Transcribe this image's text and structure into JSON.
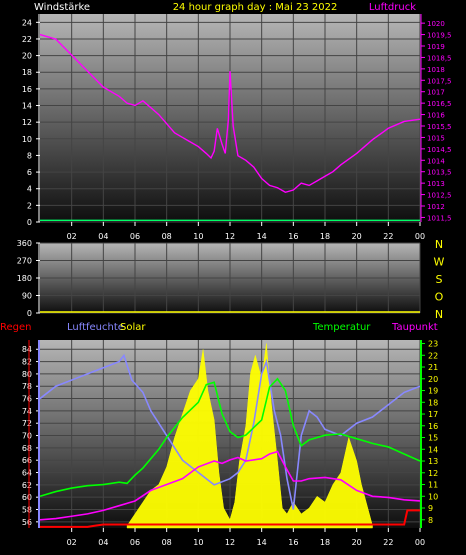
{
  "colors": {
    "background": "#000000",
    "windstaerke": "#ffffff",
    "title": "#ffff00",
    "luftdruck": "#ff00ff",
    "regen": "#ff0000",
    "luftfeuchte": "#8888ff",
    "solar": "#ffff00",
    "temperatur": "#00ff00",
    "taupunkt": "#ff00ff",
    "dir_labels": "#ffff00"
  },
  "chart_data": [
    {
      "type": "line",
      "title": "24 hour graph day : Mai 23 2022",
      "left_axis_label": "Windstärke",
      "right_axis_label": "Luftdruck",
      "x_ticks": [
        "02",
        "04",
        "06",
        "08",
        "10",
        "12",
        "14",
        "16",
        "18",
        "20",
        "22",
        "00"
      ],
      "left_ticks": [
        "0",
        "2",
        "4",
        "6",
        "8",
        "10",
        "12",
        "14",
        "16",
        "18",
        "20",
        "22",
        "24"
      ],
      "right_ticks": [
        "1011,5",
        "1012",
        "1012,5",
        "1013",
        "1013,5",
        "1014",
        "1014,5",
        "1015",
        "1015,5",
        "1016",
        "1016,5",
        "1017",
        "1017,5",
        "1018",
        "1018,5",
        "1019",
        "1019,5",
        "1020"
      ],
      "ylim_left": [
        0,
        25
      ],
      "ylim_right": [
        1011.3,
        1020.4
      ],
      "grid": true,
      "series": [
        {
          "name": "Luftdruck",
          "axis": "right",
          "x": [
            0,
            1,
            2,
            3,
            4,
            5,
            5.5,
            6,
            6.5,
            7,
            7.5,
            8,
            8.5,
            9,
            9.5,
            10,
            10.5,
            10.8,
            11,
            11.2,
            11.5,
            11.7,
            11.9,
            12,
            12.2,
            12.5,
            13,
            13.5,
            14,
            14.5,
            15,
            15.5,
            16,
            16.5,
            17,
            17.5,
            18,
            18.5,
            19,
            20,
            21,
            22,
            23,
            24
          ],
          "values": [
            1019.5,
            1019.3,
            1018.6,
            1017.9,
            1017.2,
            1016.8,
            1016.5,
            1016.4,
            1016.6,
            1016.3,
            1016.0,
            1015.6,
            1015.2,
            1015.0,
            1014.8,
            1014.6,
            1014.3,
            1014.1,
            1014.4,
            1015.4,
            1014.7,
            1014.3,
            1015.8,
            1017.9,
            1015.5,
            1014.2,
            1014.0,
            1013.7,
            1013.2,
            1012.9,
            1012.8,
            1012.6,
            1012.7,
            1013.0,
            1012.9,
            1013.1,
            1013.3,
            1013.5,
            1013.8,
            1014.3,
            1014.9,
            1015.4,
            1015.7,
            1015.8
          ]
        },
        {
          "name": "Windstärke",
          "axis": "left",
          "x": [
            0,
            24
          ],
          "values": [
            0.2,
            0.2
          ]
        }
      ]
    },
    {
      "type": "line",
      "left_ticks": [
        "0",
        "90",
        "180",
        "270",
        "360"
      ],
      "dir_labels": [
        "N",
        "W",
        "S",
        "O",
        "N"
      ],
      "ylim": [
        0,
        360
      ],
      "grid": true,
      "series": [
        {
          "name": "Windrichtung",
          "x": [
            0,
            24
          ],
          "values": [
            0,
            0
          ]
        }
      ]
    },
    {
      "type": "line",
      "legend": [
        "Regen",
        "Luftfeuchte",
        "Solar",
        "Temperatur",
        "Taupunkt"
      ],
      "x_ticks": [
        "02",
        "04",
        "06",
        "08",
        "10",
        "12",
        "14",
        "16",
        "18",
        "20",
        "22",
        "00"
      ],
      "left_ticks": [
        "56",
        "58",
        "60",
        "62",
        "64",
        "66",
        "68",
        "70",
        "72",
        "74",
        "76",
        "78",
        "80",
        "82",
        "84"
      ],
      "right_ticks": [
        "8",
        "9",
        "10",
        "11",
        "12",
        "13",
        "14",
        "15",
        "16",
        "17",
        "18",
        "19",
        "20",
        "21",
        "22",
        "23"
      ],
      "ylim_left": [
        55,
        85.5
      ],
      "ylim_right": [
        7.3,
        23.3
      ],
      "grid": true,
      "series": [
        {
          "name": "Luftfeuchte",
          "axis": "left",
          "x": [
            0,
            1,
            2,
            3,
            4,
            5,
            5.3,
            5.8,
            6.5,
            7,
            7.5,
            8,
            8.5,
            9,
            9.5,
            10,
            11,
            12,
            12.5,
            13,
            13.5,
            14,
            14.3,
            14.8,
            15.2,
            15.6,
            16,
            16.5,
            17,
            17.5,
            18,
            19,
            20,
            21,
            22,
            23,
            24
          ],
          "values": [
            76,
            78,
            79,
            80,
            81,
            82,
            83,
            79,
            77,
            74,
            72,
            70,
            68,
            66,
            65,
            64,
            62,
            63,
            64,
            66,
            72,
            80,
            82,
            74,
            70,
            63,
            58,
            70,
            74,
            73,
            71,
            70,
            72,
            73,
            75,
            77,
            78
          ]
        },
        {
          "name": "Temperatur",
          "axis": "right",
          "x": [
            0,
            1,
            2,
            3,
            4,
            5,
            5.5,
            6,
            6.5,
            7,
            7.5,
            8,
            9,
            10,
            10.5,
            11,
            11.5,
            12,
            12.5,
            13,
            14,
            14.5,
            15,
            15.5,
            16,
            16.5,
            17,
            18,
            19,
            20,
            21,
            22,
            23,
            24
          ],
          "values": [
            10,
            10.4,
            10.7,
            10.9,
            11.0,
            11.2,
            11.1,
            11.8,
            12.4,
            13.2,
            14.0,
            15.0,
            16.7,
            18.0,
            19.5,
            19.7,
            17.0,
            15.5,
            15.0,
            15.2,
            16.5,
            19.3,
            20.0,
            19.0,
            16.0,
            14.3,
            14.8,
            15.2,
            15.3,
            14.9,
            14.5,
            14.2,
            13.6,
            13.0
          ]
        },
        {
          "name": "Taupunkt",
          "axis": "right",
          "x": [
            0,
            1,
            2,
            3,
            4,
            5,
            6,
            7,
            8,
            9,
            10,
            11,
            11.5,
            12,
            12.5,
            13,
            14,
            14.5,
            15,
            15.5,
            16,
            16.5,
            17,
            18,
            19,
            20,
            21,
            22,
            23,
            24
          ],
          "values": [
            8.0,
            8.1,
            8.3,
            8.5,
            8.8,
            9.2,
            9.6,
            10.5,
            11.0,
            11.5,
            12.5,
            13.0,
            12.8,
            13.1,
            13.3,
            13.0,
            13.2,
            13.6,
            13.8,
            12.5,
            11.3,
            11.3,
            11.5,
            11.6,
            11.4,
            10.5,
            10.0,
            9.9,
            9.7,
            9.6
          ]
        },
        {
          "name": "Solar",
          "axis": "right",
          "x": [
            5.5,
            6,
            6.5,
            7,
            7.5,
            8,
            8.5,
            9,
            9.5,
            10,
            10.3,
            10.6,
            11,
            11.3,
            11.6,
            12,
            12.3,
            12.6,
            13,
            13.3,
            13.6,
            14,
            14.3,
            14.6,
            15,
            15.3,
            15.6,
            16,
            16.5,
            17,
            17.5,
            18,
            18.5,
            19,
            19.5,
            20,
            20.3,
            20.6,
            21
          ],
          "values": [
            7.5,
            8.5,
            9.5,
            10.5,
            11.0,
            12.5,
            15.0,
            17.0,
            19.0,
            20.0,
            22.5,
            19.0,
            16.5,
            12.0,
            9.0,
            8.0,
            9.5,
            13.0,
            16.0,
            20.5,
            22.0,
            20.0,
            23.0,
            18.0,
            13.0,
            9.0,
            8.5,
            9.5,
            8.5,
            9.0,
            10.0,
            9.5,
            11.0,
            12.0,
            15.0,
            13.0,
            11.0,
            9.5,
            7.5
          ]
        },
        {
          "name": "Regen",
          "axis": "right",
          "x": [
            0,
            3,
            3.5,
            4,
            5,
            5.5,
            23,
            23.2,
            24
          ],
          "values": [
            7.4,
            7.4,
            7.5,
            7.6,
            7.6,
            7.6,
            7.6,
            8.8,
            8.8
          ]
        }
      ]
    }
  ]
}
